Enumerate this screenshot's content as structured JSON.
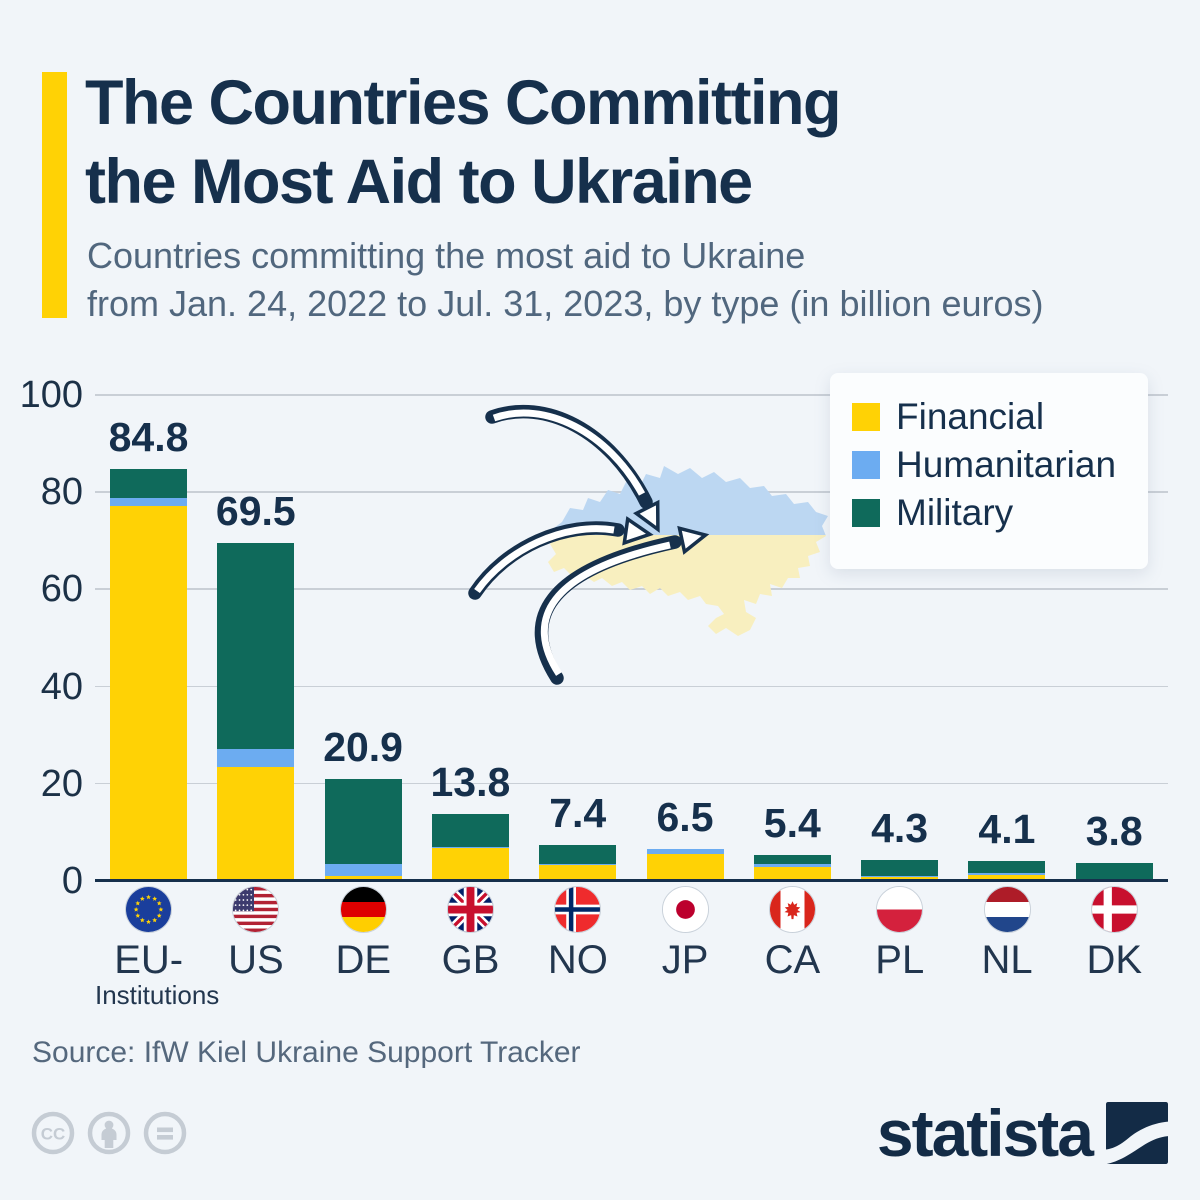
{
  "header": {
    "title_line1": "The Countries Committing",
    "title_line2": "the Most Aid to Ukraine",
    "subtitle_line1": "Countries committing the most aid to Ukraine",
    "subtitle_line2": "from Jan. 24, 2022 to Jul. 31, 2023, by type (in billion euros)"
  },
  "colors": {
    "background": "#F1F5F9",
    "accent": "#FFD205",
    "financial": "#FFD205",
    "humanitarian": "#6CACF1",
    "military": "#0F6A5B",
    "title": "#16304C",
    "gridline": "#C9CFD6",
    "map_blue": "#BCD7F2",
    "map_yellow": "#F8EFBF",
    "arrow": "#16304C"
  },
  "legend": {
    "items": [
      {
        "label": "Financial",
        "color": "#FFD205"
      },
      {
        "label": "Humanitarian",
        "color": "#6CACF1"
      },
      {
        "label": "Military",
        "color": "#0F6A5B"
      }
    ]
  },
  "chart_data": {
    "type": "bar",
    "stacked": true,
    "title": "Countries committing the most aid to Ukraine from Jan. 24, 2022 to Jul. 31, 2023, by type (in billion euros)",
    "ylabel": "billion euros",
    "ylim": [
      0,
      100
    ],
    "yticks": [
      0,
      20,
      40,
      60,
      80,
      100
    ],
    "grid": true,
    "legend_position": "top-right",
    "categories": [
      "EU-Institutions",
      "US",
      "DE",
      "GB",
      "NO",
      "JP",
      "CA",
      "PL",
      "NL",
      "DK"
    ],
    "totals": [
      84.8,
      69.5,
      20.9,
      13.8,
      7.4,
      6.5,
      5.4,
      4.3,
      4.1,
      3.8
    ],
    "series": [
      {
        "name": "Financial",
        "values": [
          77.1,
          23.5,
          1.0,
          6.7,
          3.2,
          5.6,
          2.9,
          0.8,
          1.3,
          0.1
        ]
      },
      {
        "name": "Humanitarian",
        "values": [
          1.8,
          3.7,
          2.5,
          0.4,
          0.2,
          0.9,
          0.5,
          0.3,
          0.4,
          0.2
        ]
      },
      {
        "name": "Military",
        "values": [
          5.9,
          42.3,
          17.4,
          6.7,
          4.0,
          0.0,
          2.0,
          3.2,
          2.4,
          3.5
        ]
      }
    ]
  },
  "countries": [
    {
      "code": "EU",
      "label": "EU-",
      "sublabel": "Institutions"
    },
    {
      "code": "US",
      "label": "US",
      "sublabel": ""
    },
    {
      "code": "DE",
      "label": "DE",
      "sublabel": ""
    },
    {
      "code": "GB",
      "label": "GB",
      "sublabel": ""
    },
    {
      "code": "NO",
      "label": "NO",
      "sublabel": ""
    },
    {
      "code": "JP",
      "label": "JP",
      "sublabel": ""
    },
    {
      "code": "CA",
      "label": "CA",
      "sublabel": ""
    },
    {
      "code": "PL",
      "label": "PL",
      "sublabel": ""
    },
    {
      "code": "NL",
      "label": "NL",
      "sublabel": ""
    },
    {
      "code": "DK",
      "label": "DK",
      "sublabel": ""
    }
  ],
  "footer": {
    "source": "Source: IfW Kiel Ukraine Support Tracker",
    "logo_text": "statista",
    "cc_icons": [
      "cc",
      "by",
      "nd"
    ]
  }
}
